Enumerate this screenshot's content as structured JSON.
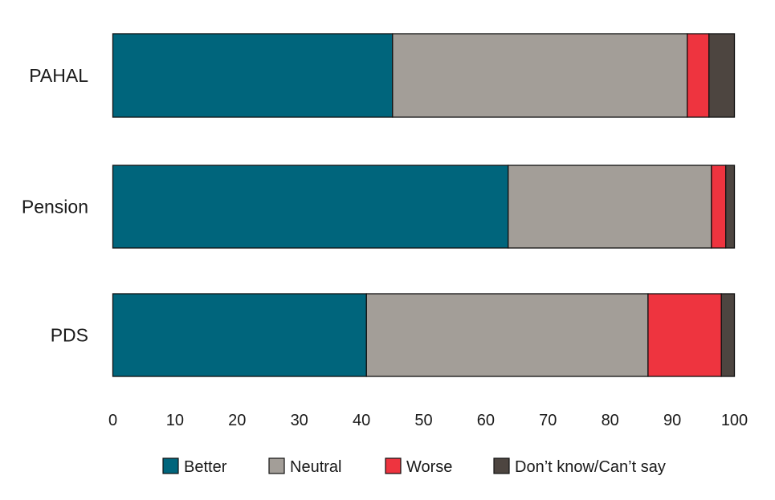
{
  "chart_data": {
    "type": "bar",
    "orientation": "horizontal",
    "stacked": true,
    "title": "",
    "xlabel": "",
    "ylabel": "",
    "xlim": [
      0,
      100
    ],
    "xticks": [
      "0",
      "10",
      "20",
      "30",
      "40",
      "50",
      "60",
      "70",
      "80",
      "90",
      "100"
    ],
    "grid": false,
    "legend_position": "bottom",
    "categories": [
      "PAHAL",
      "Pension",
      "PDS"
    ],
    "series": [
      {
        "name": "Better",
        "color": "#00657c",
        "values": [
          45.0,
          63.6,
          40.8
        ]
      },
      {
        "name": "Neutral",
        "color": "#a39e98",
        "values": [
          47.4,
          32.7,
          45.3
        ]
      },
      {
        "name": "Worse",
        "color": "#ee343f",
        "values": [
          3.5,
          2.3,
          11.8
        ]
      },
      {
        "name": "Don’t know/Can’t say",
        "color": "#4d4540",
        "values": [
          4.1,
          1.4,
          2.1
        ]
      }
    ]
  }
}
